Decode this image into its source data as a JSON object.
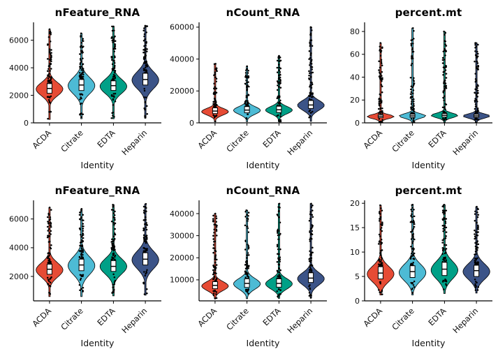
{
  "figure": {
    "rows": 2,
    "cols": 3,
    "background": "#ffffff"
  },
  "palette": {
    "ACDA": "#E64B35",
    "Citrate": "#4DBBD5",
    "EDTA": "#00A087",
    "Heparin": "#3C5488"
  },
  "chart_data": [
    {
      "type": "violin",
      "title": "nFeature_RNA",
      "xlabel": "Identity",
      "categories": [
        "ACDA",
        "Citrate",
        "EDTA",
        "Heparin"
      ],
      "ylim": [
        0,
        7300
      ],
      "yticks": [
        0,
        2000,
        4000,
        6000
      ],
      "grid": false,
      "legend": false,
      "series": [
        {
          "name": "ACDA",
          "mode": 2450,
          "bw": 480,
          "median": 2500,
          "q1": 2150,
          "q3": 2850,
          "min": 250,
          "max": 6800,
          "n_up": 62,
          "n_lo": 16
        },
        {
          "name": "Citrate",
          "mode": 2700,
          "bw": 600,
          "median": 2750,
          "q1": 2350,
          "q3": 3150,
          "min": 300,
          "max": 6500,
          "n_up": 62,
          "n_lo": 16
        },
        {
          "name": "EDTA",
          "mode": 2650,
          "bw": 520,
          "median": 2700,
          "q1": 2350,
          "q3": 3050,
          "min": 300,
          "max": 7000,
          "n_up": 62,
          "n_lo": 16
        },
        {
          "name": "Heparin",
          "mode": 3100,
          "bw": 620,
          "median": 3150,
          "q1": 2750,
          "q3": 3600,
          "min": 350,
          "max": 7050,
          "n_up": 62,
          "n_lo": 14
        }
      ]
    },
    {
      "type": "violin",
      "title": "nCount_RNA",
      "xlabel": "Identity",
      "categories": [
        "ACDA",
        "Citrate",
        "EDTA",
        "Heparin"
      ],
      "ylim": [
        0,
        63000
      ],
      "yticks": [
        0,
        20000,
        40000,
        60000
      ],
      "grid": false,
      "legend": false,
      "series": [
        {
          "name": "ACDA",
          "mode": 7000,
          "bw": 2100,
          "median": 7400,
          "q1": 5800,
          "q3": 9400,
          "min": 700,
          "max": 37000,
          "n_up": 60,
          "n_lo": 8
        },
        {
          "name": "Citrate",
          "mode": 7800,
          "bw": 2400,
          "median": 8000,
          "q1": 6300,
          "q3": 10200,
          "min": 700,
          "max": 35500,
          "n_up": 60,
          "n_lo": 8
        },
        {
          "name": "EDTA",
          "mode": 8000,
          "bw": 2300,
          "median": 8200,
          "q1": 6500,
          "q3": 10400,
          "min": 700,
          "max": 42000,
          "n_up": 60,
          "n_lo": 8
        },
        {
          "name": "Heparin",
          "mode": 11000,
          "bw": 3100,
          "median": 11200,
          "q1": 9000,
          "q3": 14000,
          "min": 900,
          "max": 60000,
          "n_up": 62,
          "n_lo": 8
        }
      ]
    },
    {
      "type": "violin",
      "title": "percent.mt",
      "xlabel": "Identity",
      "categories": [
        "ACDA",
        "Citrate",
        "EDTA",
        "Heparin"
      ],
      "ylim": [
        0,
        88
      ],
      "yticks": [
        0,
        20,
        40,
        60,
        80
      ],
      "grid": false,
      "legend": false,
      "series": [
        {
          "name": "ACDA",
          "mode": 5.5,
          "bw": 1.8,
          "median": 5.8,
          "q1": 4.5,
          "q3": 7.2,
          "min": 0.5,
          "max": 70,
          "n_up": 66,
          "n_lo": 6
        },
        {
          "name": "Citrate",
          "mode": 6.0,
          "bw": 2.0,
          "median": 6.1,
          "q1": 4.8,
          "q3": 7.6,
          "min": 0.5,
          "max": 83,
          "n_up": 66,
          "n_lo": 6
        },
        {
          "name": "EDTA",
          "mode": 6.5,
          "bw": 2.0,
          "median": 6.6,
          "q1": 5.1,
          "q3": 8.1,
          "min": 0.5,
          "max": 80,
          "n_up": 66,
          "n_lo": 6
        },
        {
          "name": "Heparin",
          "mode": 6.0,
          "bw": 1.9,
          "median": 6.1,
          "q1": 4.9,
          "q3": 7.5,
          "min": 0.5,
          "max": 70,
          "n_up": 66,
          "n_lo": 6
        }
      ]
    },
    {
      "type": "violin",
      "title": "nFeature_RNA",
      "xlabel": "Identity",
      "categories": [
        "ACDA",
        "Citrate",
        "EDTA",
        "Heparin"
      ],
      "ylim": [
        300,
        7300
      ],
      "yticks": [
        2000,
        4000,
        6000
      ],
      "grid": false,
      "legend": false,
      "series": [
        {
          "name": "ACDA",
          "mode": 2450,
          "bw": 500,
          "median": 2500,
          "q1": 2150,
          "q3": 2850,
          "min": 600,
          "max": 6800,
          "n_up": 60,
          "n_lo": 14
        },
        {
          "name": "Citrate",
          "mode": 2750,
          "bw": 620,
          "median": 2800,
          "q1": 2400,
          "q3": 3200,
          "min": 600,
          "max": 6700,
          "n_up": 60,
          "n_lo": 14
        },
        {
          "name": "EDTA",
          "mode": 2700,
          "bw": 540,
          "median": 2700,
          "q1": 2350,
          "q3": 3100,
          "min": 650,
          "max": 7000,
          "n_up": 60,
          "n_lo": 14
        },
        {
          "name": "Heparin",
          "mode": 3150,
          "bw": 620,
          "median": 3200,
          "q1": 2800,
          "q3": 3650,
          "min": 700,
          "max": 7050,
          "n_up": 60,
          "n_lo": 12
        }
      ]
    },
    {
      "type": "violin",
      "title": "nCount_RNA",
      "xlabel": "Identity",
      "categories": [
        "ACDA",
        "Citrate",
        "EDTA",
        "Heparin"
      ],
      "ylim": [
        500,
        46000
      ],
      "yticks": [
        10000,
        20000,
        30000,
        40000
      ],
      "grid": false,
      "legend": false,
      "series": [
        {
          "name": "ACDA",
          "mode": 7200,
          "bw": 2000,
          "median": 7500,
          "q1": 6000,
          "q3": 9200,
          "min": 1500,
          "max": 40000,
          "n_up": 62,
          "n_lo": 10
        },
        {
          "name": "Citrate",
          "mode": 8200,
          "bw": 2400,
          "median": 8400,
          "q1": 6600,
          "q3": 10500,
          "min": 1500,
          "max": 41500,
          "n_up": 62,
          "n_lo": 10
        },
        {
          "name": "EDTA",
          "mode": 8200,
          "bw": 2300,
          "median": 8400,
          "q1": 6700,
          "q3": 10500,
          "min": 1600,
          "max": 44500,
          "n_up": 62,
          "n_lo": 10
        },
        {
          "name": "Heparin",
          "mode": 10500,
          "bw": 2800,
          "median": 10800,
          "q1": 8800,
          "q3": 13200,
          "min": 1800,
          "max": 44500,
          "n_up": 62,
          "n_lo": 10
        }
      ]
    },
    {
      "type": "violin",
      "title": "percent.mt",
      "xlabel": "Identity",
      "categories": [
        "ACDA",
        "Citrate",
        "EDTA",
        "Heparin"
      ],
      "ylim": [
        0,
        20.6
      ],
      "yticks": [
        0,
        5,
        10,
        15,
        20
      ],
      "grid": false,
      "legend": false,
      "series": [
        {
          "name": "ACDA",
          "mode": 5.5,
          "bw": 1.6,
          "median": 5.7,
          "q1": 4.5,
          "q3": 7.0,
          "min": 1.2,
          "max": 19.6,
          "n_up": 64,
          "n_lo": 10
        },
        {
          "name": "Citrate",
          "mode": 5.8,
          "bw": 1.7,
          "median": 6.0,
          "q1": 4.8,
          "q3": 7.2,
          "min": 1.2,
          "max": 19.7,
          "n_up": 64,
          "n_lo": 10
        },
        {
          "name": "EDTA",
          "mode": 6.3,
          "bw": 1.8,
          "median": 6.5,
          "q1": 5.2,
          "q3": 7.9,
          "min": 1.5,
          "max": 19.7,
          "n_up": 64,
          "n_lo": 10
        },
        {
          "name": "Heparin",
          "mode": 6.0,
          "bw": 1.6,
          "median": 6.2,
          "q1": 5.0,
          "q3": 7.3,
          "min": 1.6,
          "max": 19.3,
          "n_up": 64,
          "n_lo": 10
        }
      ]
    }
  ]
}
